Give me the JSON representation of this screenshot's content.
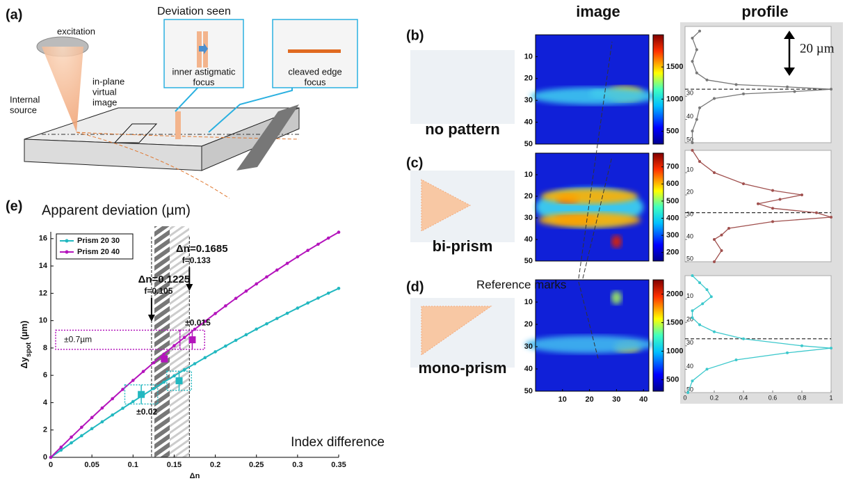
{
  "figure": {
    "panel_a": {
      "label": "(a)",
      "excitation": "excitation",
      "deviation_title": "Deviation seen",
      "inset1": [
        "inner astigmatic",
        "focus"
      ],
      "inset2": [
        "cleaved edge",
        "focus"
      ],
      "virtual_image": [
        "in-plane",
        "virtual",
        "image"
      ],
      "source": [
        "Internal",
        "source"
      ]
    },
    "headers": {
      "image": "image",
      "profile": "profile"
    },
    "reference_marks": "Reference marks",
    "scale_bar": "20 µm",
    "panels": [
      {
        "label": "(b)",
        "name": "no pattern",
        "image": {
          "xlim": [
            0,
            42
          ],
          "ylim": [
            0,
            50
          ],
          "xticks": [],
          "yticks": [
            10,
            20,
            30,
            40,
            50
          ],
          "clim": [
            300,
            2000
          ],
          "cticks": [
            500,
            1000,
            1500
          ]
        },
        "profile": {
          "ylim": [
            0,
            50
          ],
          "xlim": [
            0,
            1
          ],
          "yticks": [
            30,
            40,
            50
          ],
          "xticks": [],
          "reference": 27,
          "color": "#777777",
          "y": [
            2,
            5,
            10,
            15,
            20,
            23,
            25,
            26,
            27,
            28,
            29,
            31,
            35,
            40,
            45,
            50
          ],
          "values": [
            0.1,
            0.05,
            0.08,
            0.05,
            0.08,
            0.15,
            0.35,
            0.7,
            1,
            0.75,
            0.4,
            0.2,
            0.1,
            0.08,
            0.05,
            0.05
          ]
        }
      },
      {
        "label": "(c)",
        "name": "bi-prism",
        "image": {
          "xlim": [
            0,
            42
          ],
          "ylim": [
            0,
            50
          ],
          "xticks": [],
          "yticks": [
            10,
            20,
            30,
            40,
            50
          ],
          "clim": [
            150,
            780
          ],
          "cticks": [
            200,
            300,
            400,
            500,
            600,
            700
          ]
        },
        "profile": {
          "ylim": [
            0,
            50
          ],
          "xlim": [
            0,
            1
          ],
          "yticks": [
            10,
            20,
            30,
            40,
            50
          ],
          "xticks": [],
          "reference": 28,
          "color": "#a0504e",
          "y": [
            0,
            5,
            10,
            15,
            18,
            20,
            22,
            24,
            26,
            28,
            30,
            32,
            35,
            38,
            40,
            45,
            50
          ],
          "values": [
            0.05,
            0.1,
            0.2,
            0.4,
            0.6,
            0.8,
            0.65,
            0.5,
            0.6,
            0.9,
            1,
            0.6,
            0.3,
            0.25,
            0.2,
            0.25,
            0.2
          ]
        }
      },
      {
        "label": "(d)",
        "name": "mono-prism",
        "image": {
          "xlim": [
            0,
            42
          ],
          "ylim": [
            0,
            50
          ],
          "xticks": [
            10,
            20,
            30,
            40
          ],
          "yticks": [
            10,
            20,
            30,
            40,
            50
          ],
          "clim": [
            300,
            2250
          ],
          "cticks": [
            500,
            1000,
            1500,
            2000
          ]
        },
        "profile": {
          "ylim": [
            0,
            50
          ],
          "xlim": [
            0,
            1
          ],
          "yticks": [
            10,
            20,
            30,
            40,
            50
          ],
          "xticks": [
            0,
            0.2,
            0.4,
            0.6,
            0.8,
            1
          ],
          "reference": 27,
          "color": "#3cc8cc",
          "y": [
            0,
            3,
            6,
            9,
            12,
            15,
            18,
            21,
            24,
            27,
            30,
            31,
            33,
            36,
            40,
            45,
            50
          ],
          "values": [
            0.05,
            0.1,
            0.15,
            0.18,
            0.12,
            0.05,
            0.05,
            0.1,
            0.2,
            0.4,
            0.8,
            1,
            0.7,
            0.35,
            0.15,
            0.05,
            0.02
          ]
        }
      }
    ]
  },
  "chart_data": {
    "type": "line",
    "label": "(e)",
    "title": "Apparent deviation (µm)",
    "xlabel": "Δn",
    "ylabel": [
      "Δy",
      "spot",
      " (µm)"
    ],
    "note": "Index difference",
    "xlim": [
      0,
      0.35
    ],
    "ylim": [
      0,
      16.5
    ],
    "xticks": [
      0,
      0.05,
      0.1,
      0.15,
      0.2,
      0.25,
      0.3,
      0.35
    ],
    "yticks": [
      0,
      2,
      4,
      6,
      8,
      10,
      12,
      14,
      16
    ],
    "legend": "upper left",
    "x": [
      0,
      0.0125,
      0.025,
      0.0375,
      0.05,
      0.0625,
      0.075,
      0.0875,
      0.1,
      0.1125,
      0.125,
      0.1375,
      0.15,
      0.1625,
      0.175,
      0.1875,
      0.2,
      0.2125,
      0.225,
      0.2375,
      0.25,
      0.2625,
      0.275,
      0.2875,
      0.3,
      0.3125,
      0.325,
      0.3375,
      0.35
    ],
    "series": [
      {
        "name": "Prism 20 30",
        "color": "#22b8c0",
        "values": [
          0,
          0.53,
          1.06,
          1.58,
          2.1,
          2.6,
          3.1,
          3.59,
          4.08,
          4.56,
          5.03,
          5.5,
          5.96,
          6.41,
          6.85,
          7.29,
          7.72,
          8.14,
          8.56,
          8.97,
          9.38,
          9.77,
          10.16,
          10.54,
          10.92,
          11.29,
          11.65,
          12.01,
          12.36
        ]
      },
      {
        "name": "Prism 20 40",
        "color": "#b414bc",
        "values": [
          0,
          0.74,
          1.48,
          2.2,
          2.91,
          3.61,
          4.29,
          4.97,
          5.63,
          6.28,
          6.92,
          7.55,
          8.17,
          8.77,
          9.37,
          9.95,
          10.52,
          11.08,
          11.63,
          12.16,
          12.69,
          13.2,
          13.7,
          14.19,
          14.67,
          15.14,
          15.59,
          16.04,
          16.47
        ]
      }
    ],
    "vlines": [
      {
        "value": 0.1225,
        "label": "Δn=0.1225",
        "sub": "f=0.105"
      },
      {
        "value": 0.1685,
        "label": "Δn=0.1685",
        "sub": "f=0.133"
      }
    ],
    "markers": [
      {
        "x": 0.172,
        "y": 8.6,
        "xerr": 0.015,
        "yerr": 0.7,
        "color": "#b414bc",
        "xlabel": "±0.015",
        "ylabel": "±0.7µm"
      },
      {
        "x": 0.138,
        "y": 7.2,
        "color": "#b414bc"
      },
      {
        "x": 0.156,
        "y": 5.6,
        "xerr": 0.015,
        "yerr": 0.7,
        "color": "#22b8c0"
      },
      {
        "x": 0.11,
        "y": 4.6,
        "xerr": 0.02,
        "yerr": 0.7,
        "color": "#22b8c0",
        "xlabel": "±0.02"
      }
    ]
  }
}
